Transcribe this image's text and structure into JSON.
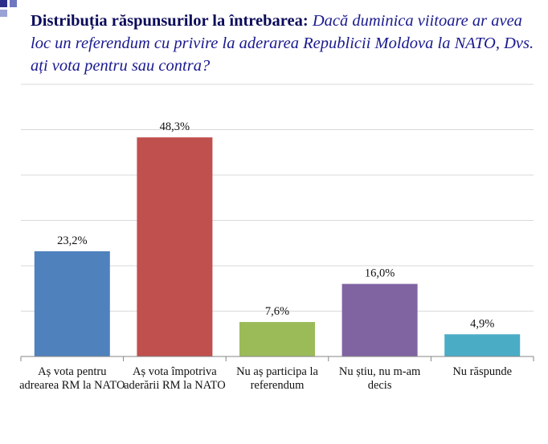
{
  "title": {
    "bold": "Distribuția răspunsurilor la întrebarea:",
    "italic": "Dacă duminica viitoare ar avea loc un referendum cu privire la aderarea Republicii Moldova la NATO, Dvs. ați vota pentru sau contra?"
  },
  "colors": {
    "title_bold": "#0b0b5a",
    "title_italic": "#1a1a8f",
    "decor_dark": "#2b2f8a",
    "decor_light": "#9aa3d6",
    "grid": "#d9d9d9",
    "axis": "#868686"
  },
  "chart_data": {
    "type": "bar",
    "categories": [
      "Aș vota pentru adrearea RM la NATO",
      "Aș vota împotriva aderării RM la NATO",
      "Nu aș participa la referendum",
      "Nu știu, nu m-am decis",
      "Nu răspunde"
    ],
    "values": [
      23.2,
      48.3,
      7.6,
      16.0,
      4.9
    ],
    "labels": [
      "23,2%",
      "48,3%",
      "7,6%",
      "16,0%",
      "4,9%"
    ],
    "colors": [
      "#4f81bd",
      "#c0504d",
      "#9bbb59",
      "#8064a2",
      "#4bacc6"
    ],
    "ylim": [
      0,
      60
    ],
    "grid": true,
    "legend": "none"
  }
}
